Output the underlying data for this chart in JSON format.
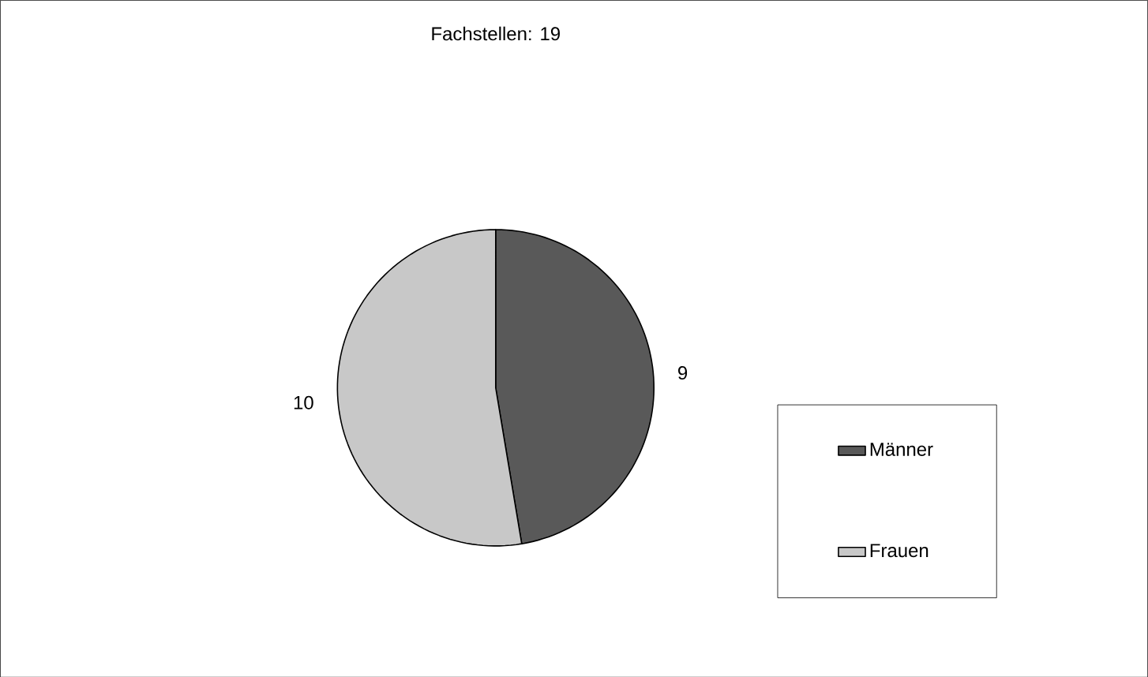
{
  "chart_data": {
    "type": "pie",
    "title": "Fachstellen: 19",
    "categories": [
      "Männer",
      "Frauen"
    ],
    "values": [
      9,
      10
    ],
    "colors": [
      "#595959",
      "#c8c8c8"
    ],
    "data_labels": true,
    "legend": "right"
  }
}
